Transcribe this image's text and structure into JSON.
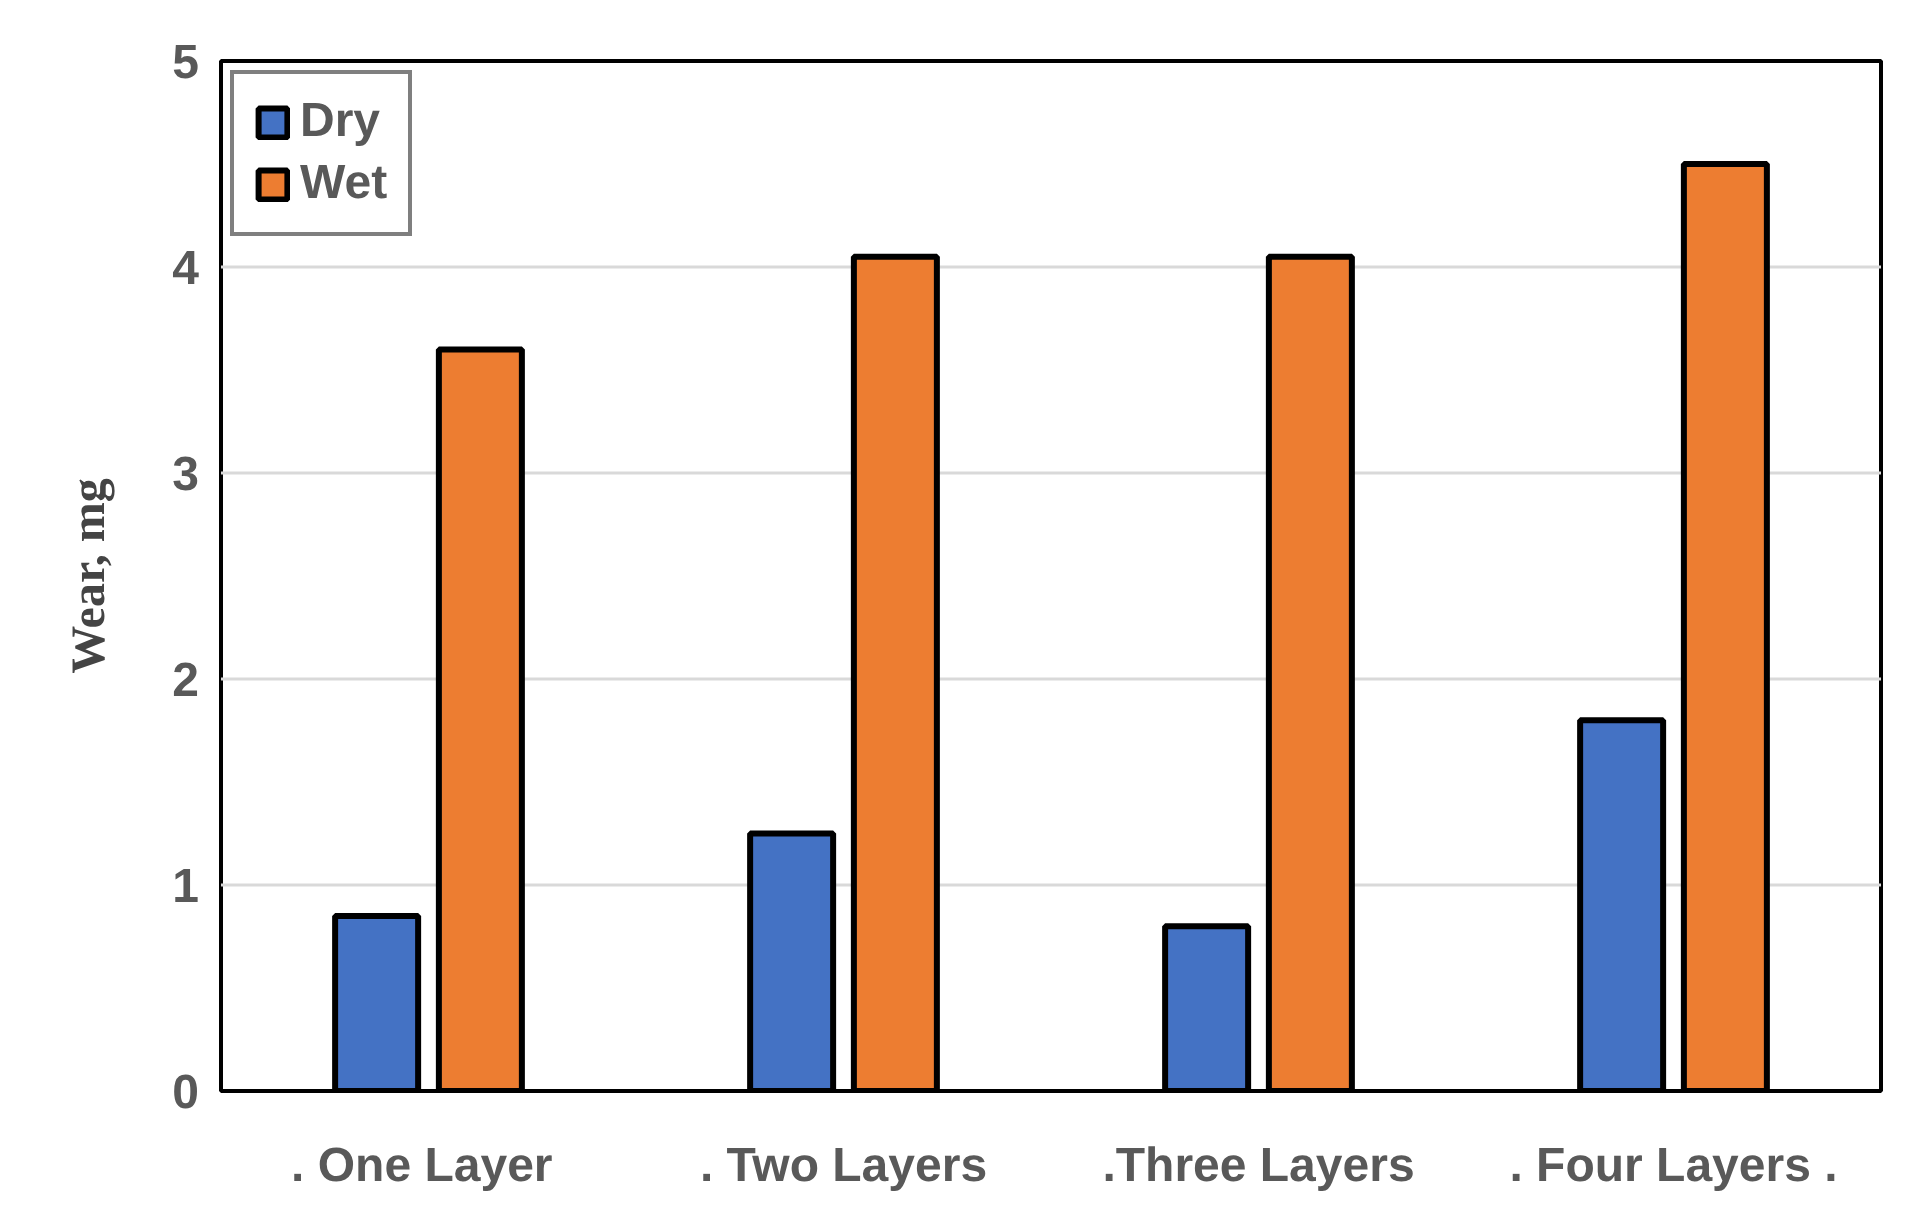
{
  "chart_data": {
    "type": "bar",
    "ylabel": "Wear, mg",
    "categories": [
      ".  One Layer",
      ". Two Layers",
      ".Three Layers",
      ". Four Layers ."
    ],
    "series": [
      {
        "name": "Dry",
        "color": "#4472c4",
        "values": [
          0.85,
          1.25,
          0.8,
          1.8
        ]
      },
      {
        "name": "Wet",
        "color": "#ed7d31",
        "values": [
          3.6,
          4.05,
          4.05,
          4.5
        ]
      }
    ],
    "ylim": [
      0,
      5
    ],
    "yticks": [
      0,
      1,
      2,
      3,
      4,
      5
    ],
    "grid": "y",
    "legend": "top left"
  }
}
